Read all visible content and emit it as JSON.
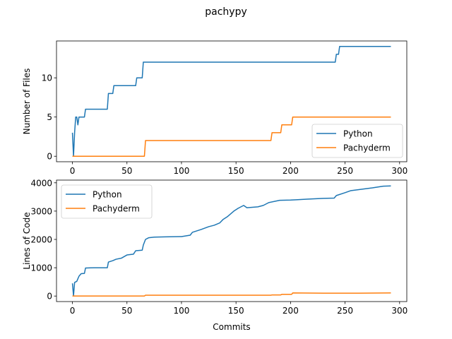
{
  "figure": {
    "suptitle": "pachypy"
  },
  "chart_data": [
    {
      "type": "line",
      "title": "",
      "xlabel": "",
      "ylabel": "Number of Files",
      "xlim": [
        -14.6,
        306.6
      ],
      "ylim": [
        -0.7,
        14.7
      ],
      "xticks": [
        0,
        50,
        100,
        150,
        200,
        250,
        300
      ],
      "yticks": [
        0,
        5,
        10
      ],
      "legend_position": "lower-right",
      "grid": false,
      "series": [
        {
          "name": "Python",
          "color": "#1f77b4",
          "points": [
            [
              0,
              3
            ],
            [
              1,
              0
            ],
            [
              2,
              3
            ],
            [
              3,
              5
            ],
            [
              4,
              5
            ],
            [
              5,
              4
            ],
            [
              6,
              5
            ],
            [
              11,
              5
            ],
            [
              12,
              6
            ],
            [
              32,
              6
            ],
            [
              33,
              8
            ],
            [
              37,
              8
            ],
            [
              38,
              9
            ],
            [
              58,
              9
            ],
            [
              59,
              10
            ],
            [
              64,
              10
            ],
            [
              65,
              12
            ],
            [
              241,
              12
            ],
            [
              242,
              13
            ],
            [
              244,
              13
            ],
            [
              245,
              14
            ],
            [
              292,
              14
            ]
          ]
        },
        {
          "name": "Pachyderm",
          "color": "#ff7f0e",
          "points": [
            [
              0,
              0
            ],
            [
              66,
              0
            ],
            [
              67,
              2
            ],
            [
              182,
              2
            ],
            [
              183,
              3
            ],
            [
              191,
              3
            ],
            [
              192,
              4
            ],
            [
              201,
              4
            ],
            [
              202,
              5
            ],
            [
              292,
              5
            ]
          ]
        }
      ]
    },
    {
      "type": "line",
      "title": "",
      "xlabel": "Commits",
      "ylabel": "Lines of Code",
      "xlim": [
        -14.6,
        306.6
      ],
      "ylim": [
        -195,
        4095
      ],
      "xticks": [
        0,
        50,
        100,
        150,
        200,
        250,
        300
      ],
      "yticks": [
        0,
        1000,
        2000,
        3000,
        4000
      ],
      "legend_position": "upper-left",
      "grid": false,
      "series": [
        {
          "name": "Python",
          "color": "#1f77b4",
          "points": [
            [
              0,
              450
            ],
            [
              1,
              10
            ],
            [
              2,
              480
            ],
            [
              4,
              520
            ],
            [
              6,
              700
            ],
            [
              8,
              790
            ],
            [
              11,
              800
            ],
            [
              12,
              990
            ],
            [
              20,
              1000
            ],
            [
              32,
              1000
            ],
            [
              33,
              1200
            ],
            [
              37,
              1250
            ],
            [
              40,
              1300
            ],
            [
              45,
              1340
            ],
            [
              50,
              1450
            ],
            [
              56,
              1480
            ],
            [
              58,
              1600
            ],
            [
              64,
              1620
            ],
            [
              65,
              1800
            ],
            [
              67,
              2000
            ],
            [
              70,
              2060
            ],
            [
              75,
              2080
            ],
            [
              85,
              2090
            ],
            [
              100,
              2100
            ],
            [
              108,
              2150
            ],
            [
              110,
              2250
            ],
            [
              118,
              2350
            ],
            [
              125,
              2450
            ],
            [
              130,
              2500
            ],
            [
              135,
              2580
            ],
            [
              138,
              2700
            ],
            [
              142,
              2800
            ],
            [
              148,
              3000
            ],
            [
              152,
              3100
            ],
            [
              157,
              3200
            ],
            [
              160,
              3120
            ],
            [
              170,
              3150
            ],
            [
              175,
              3200
            ],
            [
              180,
              3300
            ],
            [
              190,
              3380
            ],
            [
              200,
              3390
            ],
            [
              205,
              3400
            ],
            [
              215,
              3420
            ],
            [
              230,
              3450
            ],
            [
              240,
              3460
            ],
            [
              242,
              3550
            ],
            [
              250,
              3650
            ],
            [
              255,
              3720
            ],
            [
              265,
              3770
            ],
            [
              275,
              3820
            ],
            [
              285,
              3880
            ],
            [
              292,
              3890
            ]
          ]
        },
        {
          "name": "Pachyderm",
          "color": "#ff7f0e",
          "points": [
            [
              0,
              0
            ],
            [
              66,
              0
            ],
            [
              67,
              30
            ],
            [
              182,
              30
            ],
            [
              183,
              40
            ],
            [
              191,
              40
            ],
            [
              192,
              60
            ],
            [
              201,
              60
            ],
            [
              202,
              110
            ],
            [
              230,
              100
            ],
            [
              260,
              100
            ],
            [
              292,
              110
            ]
          ]
        }
      ]
    }
  ]
}
